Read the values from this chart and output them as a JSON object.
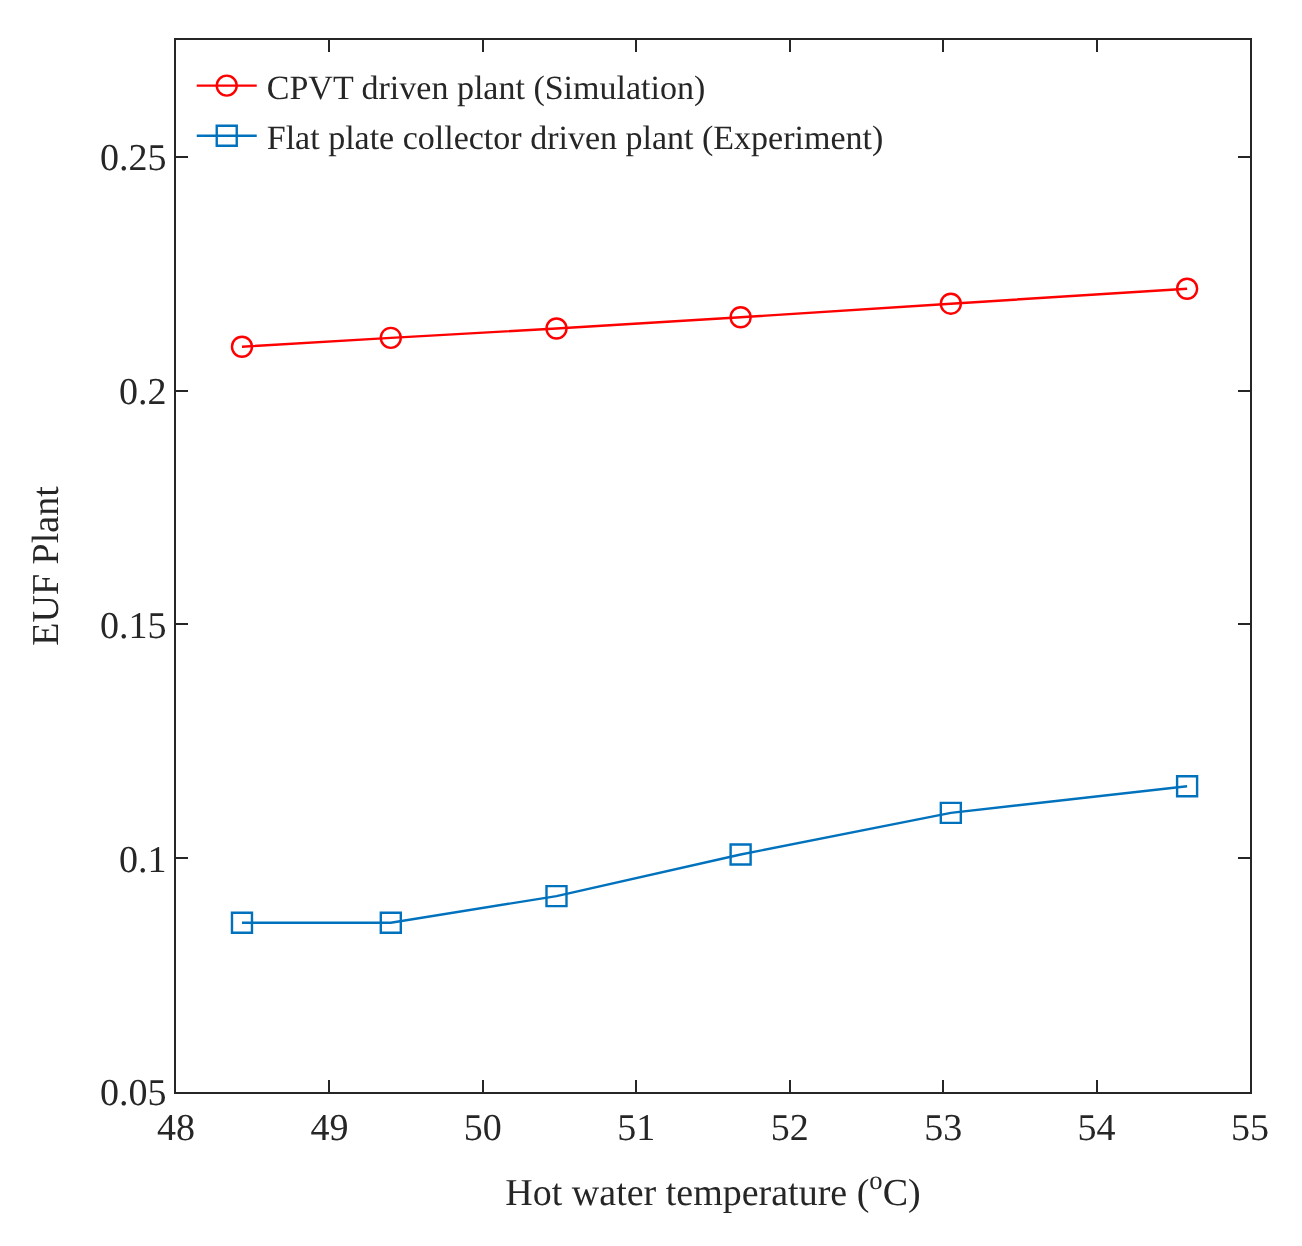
{
  "chart_data": {
    "type": "line",
    "xlabel": "Hot water temperature ($^{o}$C)",
    "ylabel": "EUF Plant",
    "x": [
      48.43,
      49.4,
      50.48,
      51.68,
      53.05,
      54.59
    ],
    "series": [
      {
        "name": "CPVT driven plant (Simulation)",
        "color": "#ff0000",
        "marker": "circle",
        "values": [
          0.2094,
          0.2113,
          0.2133,
          0.2157,
          0.2186,
          0.2218
        ]
      },
      {
        "name": "Flat plate collector driven plant (Experiment)",
        "color": "#0072bd",
        "marker": "square",
        "values": [
          0.0862,
          0.0862,
          0.0919,
          0.1008,
          0.1097,
          0.1154
        ]
      }
    ],
    "xlim": [
      48,
      55
    ],
    "xticks": [
      48,
      49,
      50,
      51,
      52,
      53,
      54,
      55
    ],
    "ylim": [
      0.05,
      0.275
    ],
    "yticks": [
      0.05,
      0.1,
      0.15,
      0.2,
      0.25
    ],
    "legend": "top left",
    "line_style": "solid"
  }
}
